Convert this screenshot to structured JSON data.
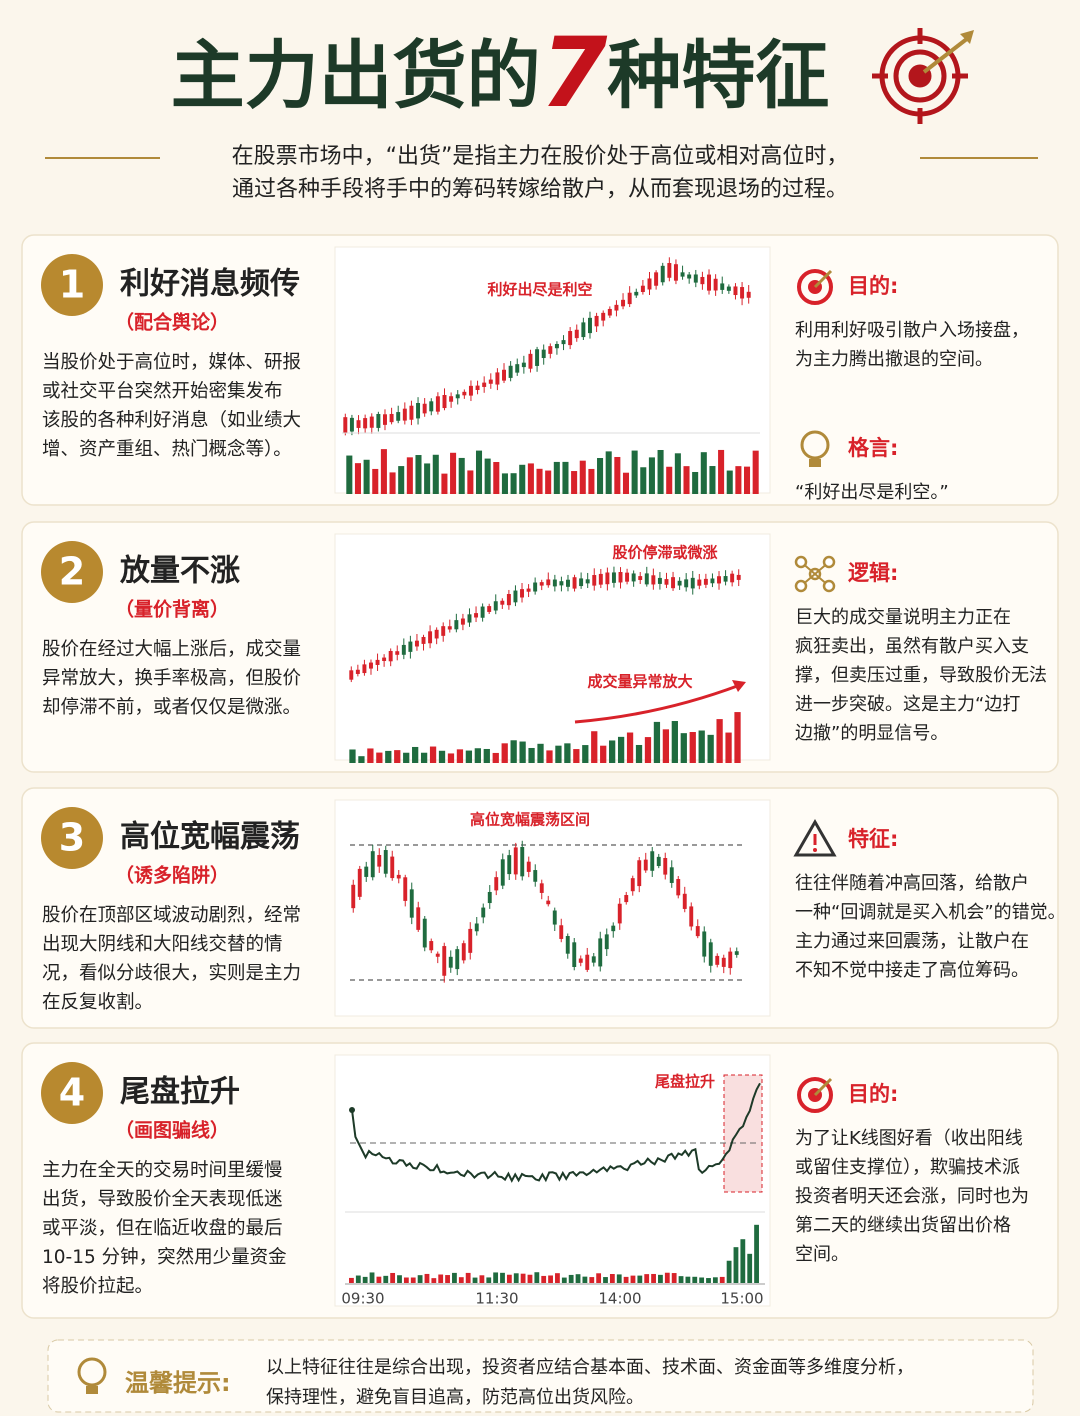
{
  "header": {
    "title_start": "主力出货的",
    "title_number": "7",
    "title_end": "种特征",
    "intro": [
      "在股票市场中，“出货”是指主力在股价处于高位或相对高位时，",
      "通过各种手段将手中的筹码转嫁给散户，从而套现退场的过程。"
    ]
  },
  "cards": [
    {
      "number": "1",
      "title": "利好消息频传",
      "subtitle": "（配合舆论）",
      "description": [
        "当股价处于高位时，媒体、研报",
        "或社交平台突然开始密集发布",
        "该股的各种利好消息（如业绩大",
        "增、资产重组、热门概念等）。"
      ],
      "chart_labels": [
        "利好出尽是利空"
      ],
      "side": [
        {
          "heading": "目的:",
          "text": [
            "利用利好吸引散户入场接盘，",
            "为主力腾出撤退的空间。"
          ]
        },
        {
          "heading": "格言:",
          "text": [
            "“利好出尽是利空。”"
          ]
        }
      ]
    },
    {
      "number": "2",
      "title": "放量不涨",
      "subtitle": "（量价背离）",
      "description": [
        "股价在经过大幅上涨后，成交量",
        "异常放大，换手率极高，但股价",
        "却停滞不前，或者仅仅是微涨。"
      ],
      "chart_labels": [
        "股价停滞或微涨",
        "成交量异常放大"
      ],
      "side": [
        {
          "heading": "逻辑:",
          "text": [
            "巨大的成交量说明主力正在",
            "疯狂卖出，虽然有散户买入支",
            "撑，但卖压过重，导致股价无法",
            "进一步突破。这是主力“边打",
            "边撤”的明显信号。"
          ]
        }
      ]
    },
    {
      "number": "3",
      "title": "高位宽幅震荡",
      "subtitle": "（诱多陷阱）",
      "description": [
        "股价在顶部区域波动剧烈，经常",
        "出现大阴线和大阳线交替的情",
        "况，看似分歧很大，实则是主力",
        "在反复收割。"
      ],
      "chart_labels": [
        "高位宽幅震荡区间"
      ],
      "side": [
        {
          "heading": "特征:",
          "text": [
            "往往伴随着冲高回落，给散户",
            "一种“回调就是买入机会”的错觉。",
            "主力通过来回震荡，让散户在",
            "不知不觉中接走了高位筹码。"
          ]
        }
      ]
    },
    {
      "number": "4",
      "title": "尾盘拉升",
      "subtitle": "（画图骗线）",
      "description": [
        "主力在全天的交易时间里缓慢",
        "出货，导致股价全天表现低迷",
        "或平淡，但在临近收盘的最后",
        "10-15 分钟，突然用少量资金",
        "将股价拉起。"
      ],
      "chart_labels": [
        "尾盘拉升"
      ],
      "time_labels": [
        "09:30",
        "11:30",
        "14:00",
        "15:00"
      ],
      "side": [
        {
          "heading": "目的:",
          "text": [
            "为了让K线图好看（收出阳线",
            "或留住支撑位），欺骗技术派",
            "投资者明天还会涨，同时也为",
            "第二天的继续出货留出价格",
            "空间。"
          ]
        }
      ]
    }
  ],
  "tip": {
    "heading": "温馨提示:",
    "text": [
      "以上特征往往是综合出现，投资者应结合基本面、技术面、资金面等多维度分析，",
      "保持理性，避免盲目追高，防范高位出货风险。"
    ]
  }
}
